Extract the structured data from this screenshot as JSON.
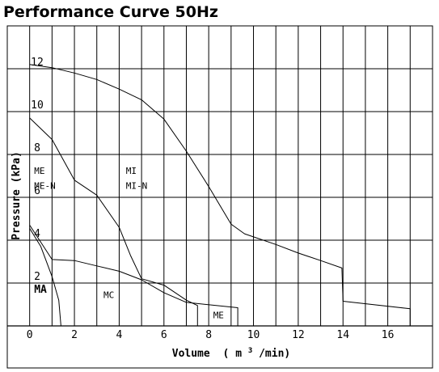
{
  "title": "Performance Curve 50Hz",
  "chart_data": {
    "type": "line",
    "title": "Performance Curve 50Hz",
    "xlabel": "Volume (m³/min)",
    "xlabel_main": "Volume",
    "xlabel_unit_open": "( m",
    "xlabel_unit_sup": "3",
    "xlabel_unit_close": "/min)",
    "ylabel": "Pressure (kPa)",
    "xlim": [
      -1,
      18
    ],
    "ylim": [
      0,
      14
    ],
    "xticks": [
      0,
      2,
      4,
      6,
      8,
      10,
      12,
      14,
      16
    ],
    "yticks": [
      2,
      4,
      6,
      8,
      10,
      12
    ],
    "grid": true,
    "series": [
      {
        "name": "MI / MI-N",
        "values_xy": [
          [
            0,
            12.2
          ],
          [
            1,
            12.05
          ],
          [
            2,
            11.8
          ],
          [
            3,
            11.5
          ],
          [
            4,
            11.05
          ],
          [
            5,
            10.55
          ],
          [
            6,
            9.65
          ],
          [
            7,
            8.15
          ],
          [
            8,
            6.5
          ],
          [
            9,
            4.75
          ],
          [
            9.6,
            4.3
          ],
          [
            11,
            3.8
          ],
          [
            12,
            3.4
          ],
          [
            13,
            3.05
          ],
          [
            13.95,
            2.7
          ],
          [
            14,
            1.15
          ],
          [
            17,
            0.8
          ],
          [
            17,
            0
          ]
        ]
      },
      {
        "name": "ME / ME-N",
        "values_xy": [
          [
            0,
            9.7
          ],
          [
            1,
            8.7
          ],
          [
            2,
            6.8
          ],
          [
            3,
            6.1
          ],
          [
            4,
            4.6
          ],
          [
            4.5,
            3.3
          ],
          [
            5,
            2.2
          ],
          [
            6,
            1.9
          ],
          [
            7,
            1.2
          ],
          [
            7.5,
            0.95
          ],
          [
            7.5,
            0
          ]
        ]
      },
      {
        "name": "MC",
        "values_xy": [
          [
            0,
            4.7
          ],
          [
            1,
            3.1
          ],
          [
            2,
            3.05
          ],
          [
            3,
            2.8
          ],
          [
            4,
            2.55
          ],
          [
            5,
            2.15
          ],
          [
            6,
            1.55
          ],
          [
            7,
            1.1
          ],
          [
            9.3,
            0.85
          ],
          [
            9.3,
            0
          ]
        ]
      },
      {
        "name": "MA",
        "values_xy": [
          [
            0,
            4.55
          ],
          [
            0.5,
            3.7
          ],
          [
            1,
            2.3
          ],
          [
            1.3,
            1.2
          ],
          [
            1.4,
            0
          ]
        ]
      }
    ],
    "annotations": [
      {
        "text": "ME",
        "x": 0.2,
        "y": 7.1
      },
      {
        "text": "ME-N",
        "x": 0.2,
        "y": 6.4
      },
      {
        "text": "MI",
        "x": 4.3,
        "y": 7.1
      },
      {
        "text": "MI-N",
        "x": 4.3,
        "y": 6.4
      },
      {
        "text": "MA",
        "x": 0.2,
        "y": 1.55
      },
      {
        "text": "MC",
        "x": 3.3,
        "y": 1.3
      },
      {
        "text": "ME",
        "x": 8.2,
        "y": 0.35
      }
    ]
  }
}
